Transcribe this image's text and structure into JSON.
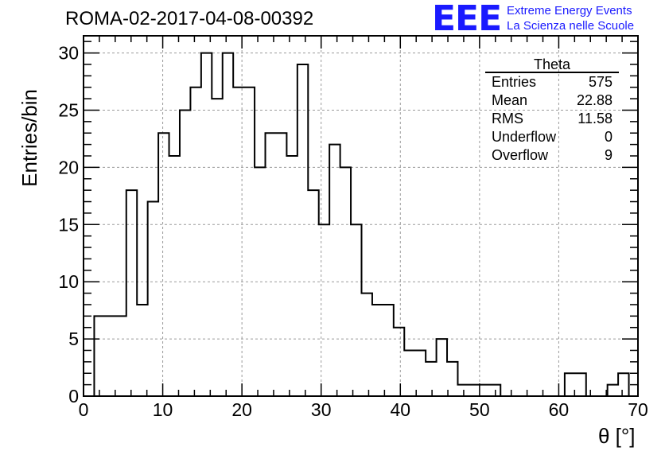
{
  "chart_data": {
    "type": "bar",
    "title": "ROMA-02-2017-04-08-00392",
    "xlabel": "θ [°]",
    "ylabel": "Entries/bin",
    "xlim": [
      0,
      70
    ],
    "ylim": [
      0,
      31.5
    ],
    "bin_width": 1.35,
    "bin_low_edges": [
      1.35,
      2.7,
      4.05,
      5.4,
      6.75,
      8.1,
      9.45,
      10.8,
      12.15,
      13.5,
      14.85,
      16.2,
      17.55,
      18.9,
      20.25,
      21.6,
      22.95,
      24.3,
      25.65,
      27.0,
      28.35,
      29.7,
      31.05,
      32.4,
      33.75,
      35.1,
      36.45,
      37.8,
      39.15,
      40.5,
      41.85,
      43.2,
      44.55,
      45.9,
      47.25,
      48.6,
      49.95,
      51.3,
      52.65,
      54.0,
      55.35,
      56.7,
      58.05,
      59.4,
      60.75,
      62.1,
      63.45,
      64.8,
      66.15,
      67.5,
      68.85
    ],
    "values": [
      7,
      7,
      7,
      18,
      8,
      17,
      23,
      21,
      25,
      27,
      30,
      26,
      30,
      27,
      27,
      20,
      23,
      23,
      21,
      29,
      18,
      15,
      22,
      20,
      15,
      9,
      8,
      8,
      6,
      4,
      4,
      3,
      5,
      3,
      1,
      1,
      1,
      1,
      0,
      0,
      0,
      0,
      0,
      0,
      2,
      2,
      0,
      0,
      1,
      2,
      0
    ],
    "x_ticks": [
      0,
      10,
      20,
      30,
      40,
      50,
      60,
      70
    ],
    "y_ticks": [
      0,
      5,
      10,
      15,
      20,
      25,
      30
    ],
    "grid": true,
    "line_color": "#000000",
    "stats_box": {
      "name": "Theta",
      "entries_label": "Entries",
      "entries": "575",
      "mean_label": "Mean",
      "mean": "22.88",
      "rms_label": "RMS",
      "rms": "11.58",
      "underflow_label": "Underflow",
      "underflow": "0",
      "overflow_label": "Overflow",
      "overflow": "9"
    }
  },
  "logo": {
    "mark": "EEE",
    "line1": "Extreme Energy Events",
    "line2": "La Scienza nelle Scuole",
    "color": "#1a1aff"
  }
}
